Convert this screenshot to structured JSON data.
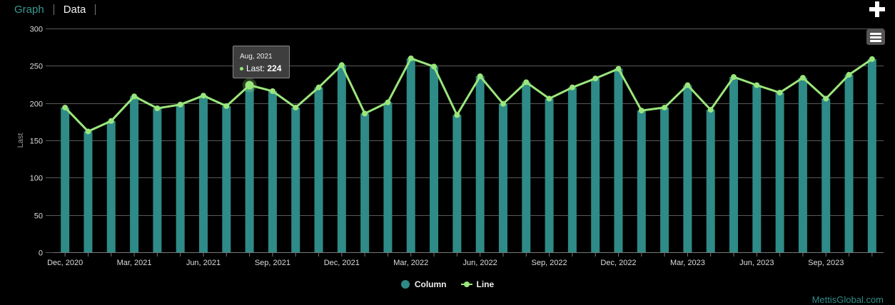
{
  "tabs": {
    "graph": "Graph",
    "data": "Data"
  },
  "icons": {
    "expand": "plus-icon",
    "menu": "hamburger-menu-icon"
  },
  "colors": {
    "column": "#2e8b87",
    "line": "#9be67c",
    "background": "#000000"
  },
  "tooltip": {
    "date": "Aug, 2021",
    "series": "Last",
    "value": "224"
  },
  "legend": {
    "column": "Column",
    "line": "Line"
  },
  "credit": "MettisGlobal.com",
  "chart_data": {
    "type": "bar",
    "ylabel": "Last",
    "ylim": [
      0,
      300
    ],
    "yticks": [
      0,
      50,
      100,
      150,
      200,
      250,
      300
    ],
    "grid": true,
    "legend_position": "bottom-center",
    "x_tick_labels": [
      "Dec, 2020",
      "Mar, 2021",
      "Jun, 2021",
      "Sep, 2021",
      "Dec, 2021",
      "Mar, 2022",
      "Jun, 2022",
      "Sep, 2022",
      "Dec, 2022",
      "Mar, 2023",
      "Jun, 2023",
      "Sep, 2023"
    ],
    "categories": [
      "Dec, 2020",
      "Jan, 2021",
      "Feb, 2021",
      "Mar, 2021",
      "Apr, 2021",
      "May, 2021",
      "Jun, 2021",
      "Jul, 2021",
      "Aug, 2021",
      "Sep, 2021",
      "Oct, 2021",
      "Nov, 2021",
      "Dec, 2021",
      "Jan, 2022",
      "Feb, 2022",
      "Mar, 2022",
      "Apr, 2022",
      "May, 2022",
      "Jun, 2022",
      "Jul, 2022",
      "Aug, 2022",
      "Sep, 2022",
      "Oct, 2022",
      "Nov, 2022",
      "Dec, 2022",
      "Jan, 2023",
      "Feb, 2023",
      "Mar, 2023",
      "Apr, 2023",
      "May, 2023",
      "Jun, 2023",
      "Jul, 2023",
      "Aug, 2023",
      "Sep, 2023",
      "Oct, 2023",
      "Nov, 2023"
    ],
    "series": [
      {
        "name": "Column",
        "values": [
          194,
          162,
          176,
          209,
          193,
          198,
          210,
          196,
          224,
          216,
          194,
          221,
          251,
          186,
          201,
          260,
          249,
          184,
          236,
          199,
          228,
          206,
          221,
          233,
          246,
          190,
          194,
          224,
          191,
          235,
          224,
          214,
          234,
          206,
          238,
          259
        ]
      },
      {
        "name": "Line",
        "values": [
          194,
          162,
          176,
          209,
          193,
          198,
          210,
          196,
          224,
          216,
          194,
          221,
          251,
          186,
          201,
          260,
          249,
          184,
          236,
          199,
          228,
          206,
          221,
          233,
          246,
          190,
          194,
          224,
          191,
          235,
          224,
          214,
          234,
          206,
          238,
          259
        ]
      }
    ],
    "highlight_index": 8
  }
}
